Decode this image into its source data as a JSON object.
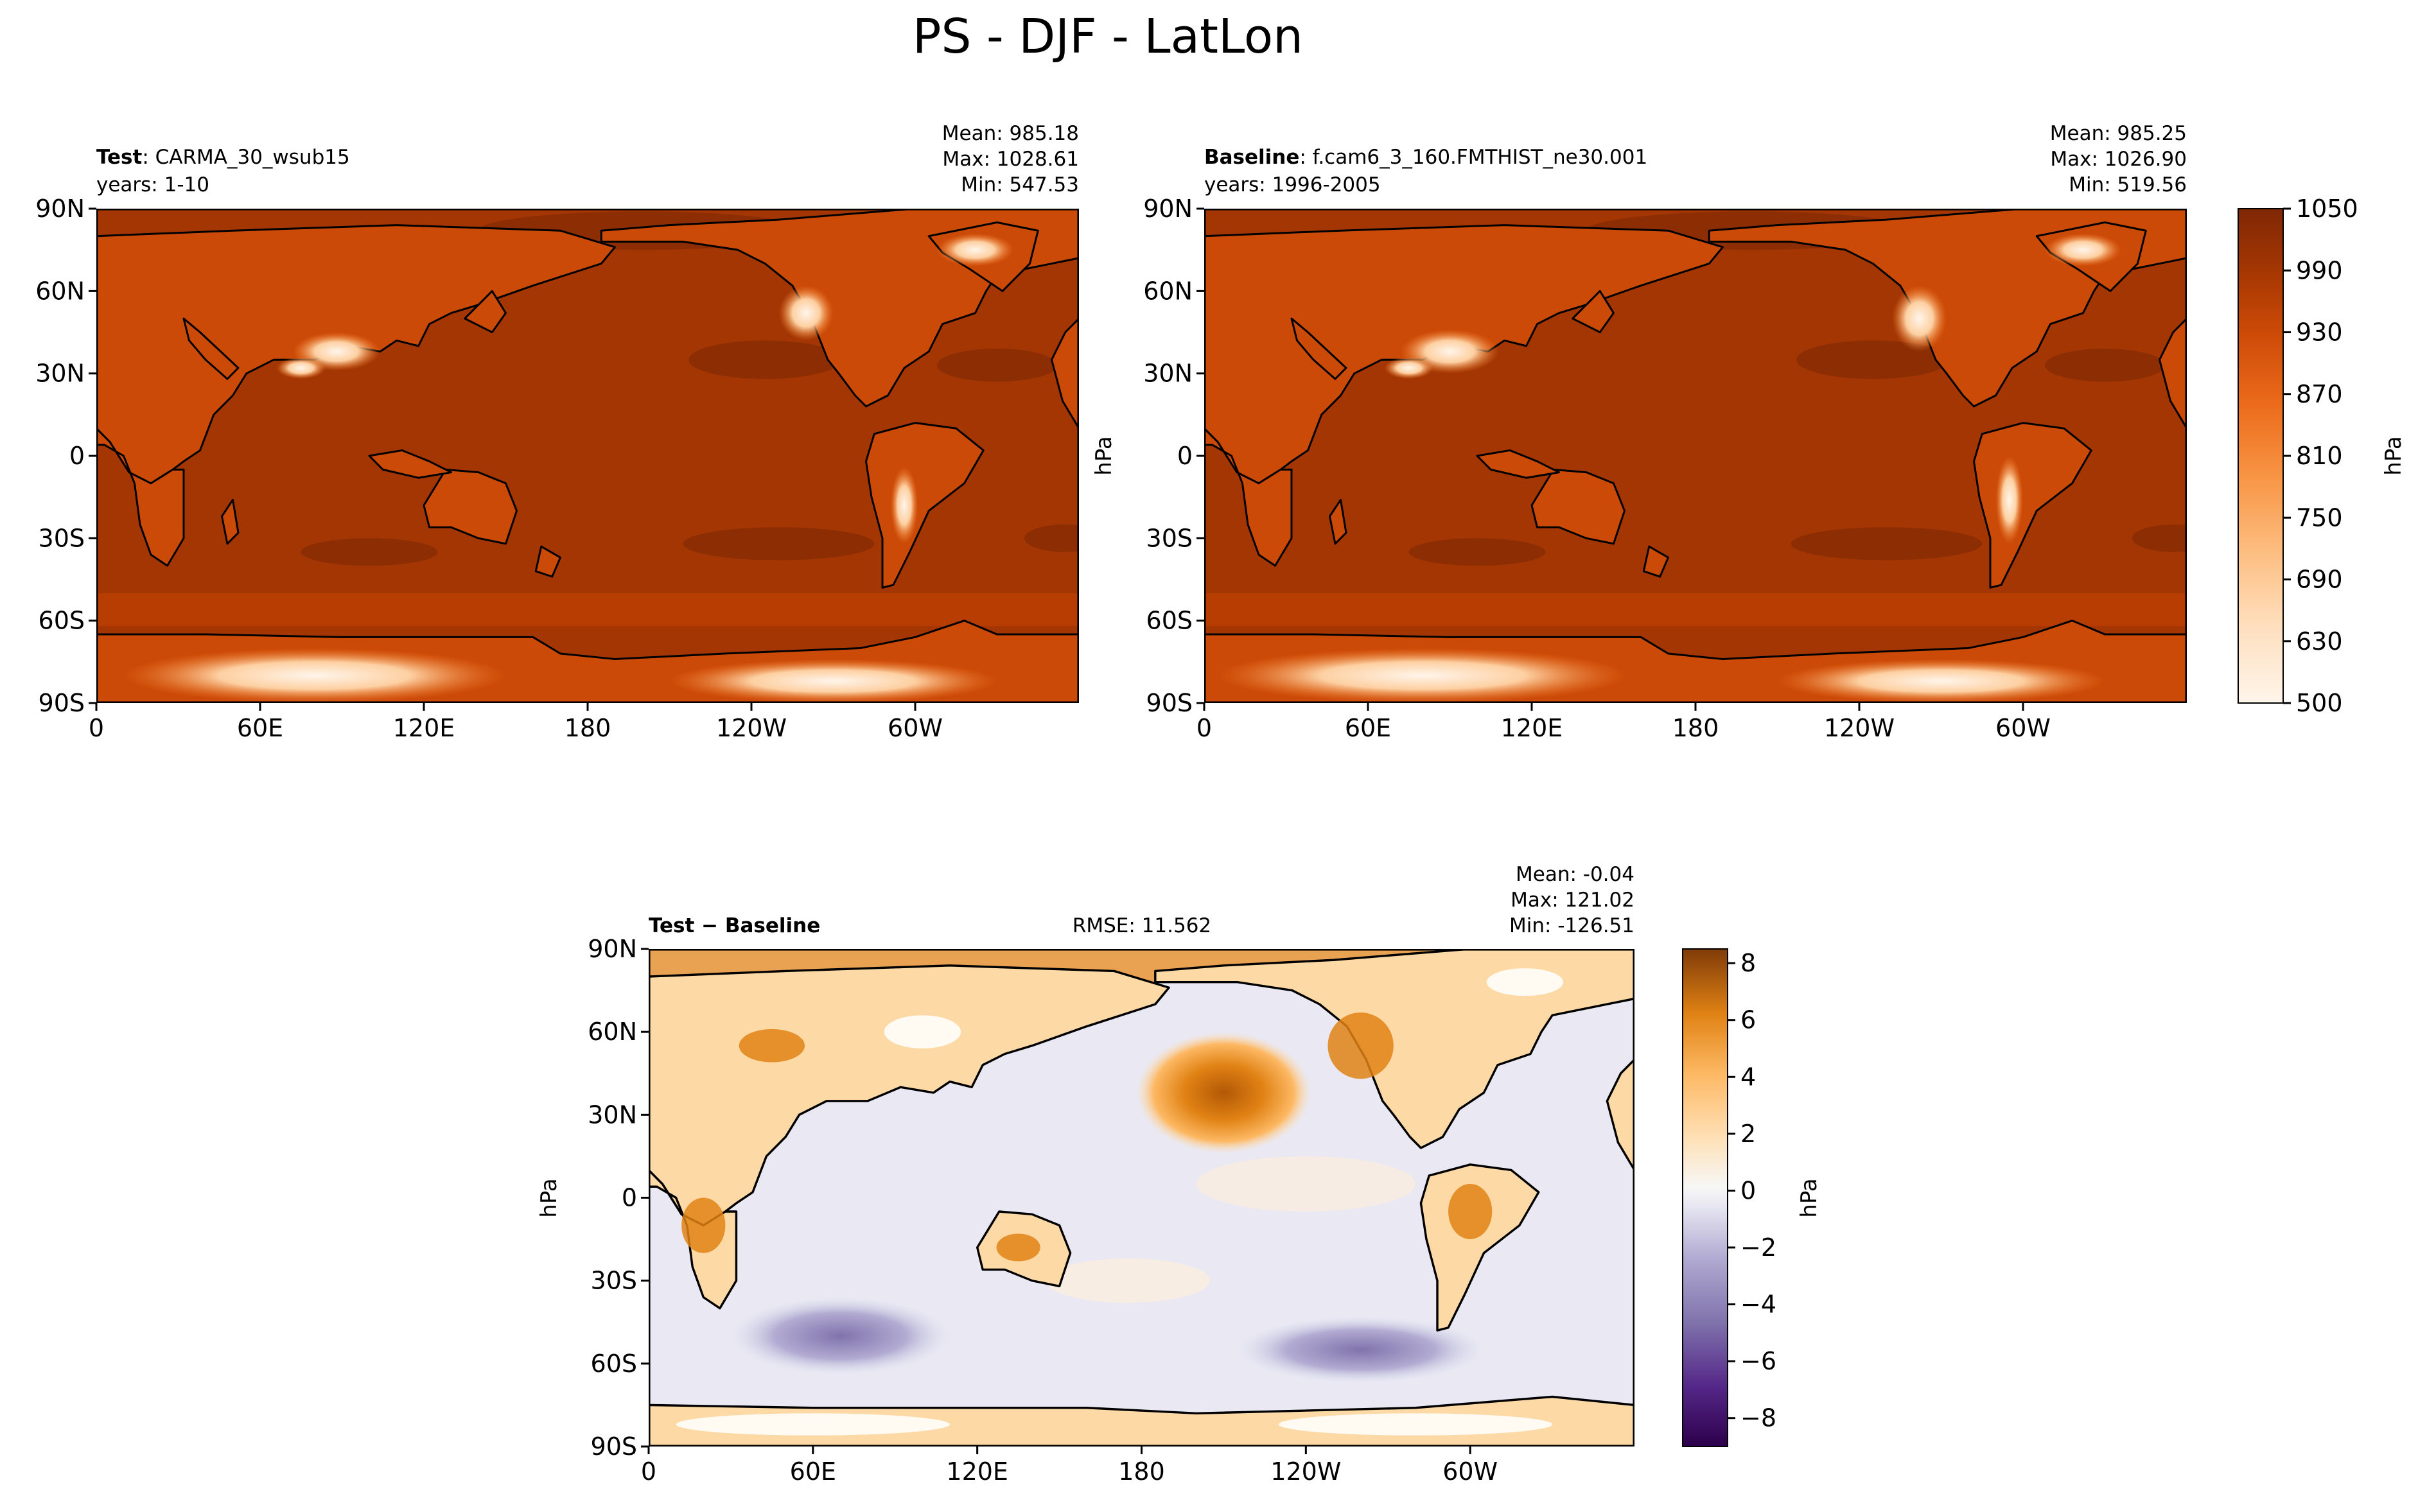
{
  "figure": {
    "suptitle": "PS - DJF - LatLon"
  },
  "chart_data": [
    {
      "type": "heatmap",
      "panel": "test",
      "title_bold": "Test",
      "title_rest": ": CARMA_30_wsub15",
      "years": "years: 1-10",
      "stats": [
        "Mean: 985.18",
        "Max: 1028.61",
        "Min: 547.53"
      ],
      "x_ticks": [
        "0",
        "60E",
        "120E",
        "180",
        "120W",
        "60W"
      ],
      "y_ticks": [
        "90N",
        "60N",
        "30N",
        "0",
        "30S",
        "60S",
        "90S"
      ],
      "xlim": [
        0,
        360
      ],
      "ylim": [
        -90,
        90
      ],
      "variable": "PS",
      "season": "DJF",
      "units": "hPa",
      "approx_ocean_value": 1010
    },
    {
      "type": "heatmap",
      "panel": "baseline",
      "title_bold": "Baseline",
      "title_rest": ": f.cam6_3_160.FMTHIST_ne30.001",
      "years": "years: 1996-2005",
      "stats": [
        "Mean: 985.25",
        "Max: 1026.90",
        "Min: 519.56"
      ],
      "x_ticks": [
        "0",
        "60E",
        "120E",
        "180",
        "120W",
        "60W"
      ],
      "y_ticks": [
        "90N",
        "60N",
        "30N",
        "0",
        "30S",
        "60S",
        "90S"
      ],
      "xlim": [
        0,
        360
      ],
      "ylim": [
        -90,
        90
      ],
      "units": "hPa",
      "colorbar": {
        "label": "hPa",
        "ticks": [
          "1050",
          "990",
          "930",
          "870",
          "810",
          "750",
          "690",
          "630",
          "500"
        ],
        "colors": [
          "#7f2704",
          "#8c2d04",
          "#a33603",
          "#b83d03",
          "#cc4a07",
          "#e05a0e",
          "#ec6c1c",
          "#f3822f",
          "#f89747",
          "#fcab61",
          "#fdbf83",
          "#fdd0a2",
          "#fee0c0",
          "#fff5eb"
        ]
      }
    },
    {
      "type": "heatmap",
      "panel": "difference",
      "title_bold": "Test − Baseline",
      "rmse": "RMSE: 11.562",
      "stats": [
        "Mean: -0.04",
        "Max: 121.02",
        "Min: -126.51"
      ],
      "x_ticks": [
        "0",
        "60E",
        "120E",
        "180",
        "120W",
        "60W"
      ],
      "y_ticks": [
        "90N",
        "60N",
        "30N",
        "0",
        "30S",
        "60S",
        "90S"
      ],
      "xlim": [
        0,
        360
      ],
      "ylim": [
        -90,
        90
      ],
      "ylabel": "hPa",
      "colorbar": {
        "label": "hPa",
        "ticks": [
          "8",
          "6",
          "4",
          "2",
          "0",
          "−2",
          "−4",
          "−6",
          "−8"
        ],
        "range": [
          -9,
          8.5
        ]
      }
    }
  ]
}
